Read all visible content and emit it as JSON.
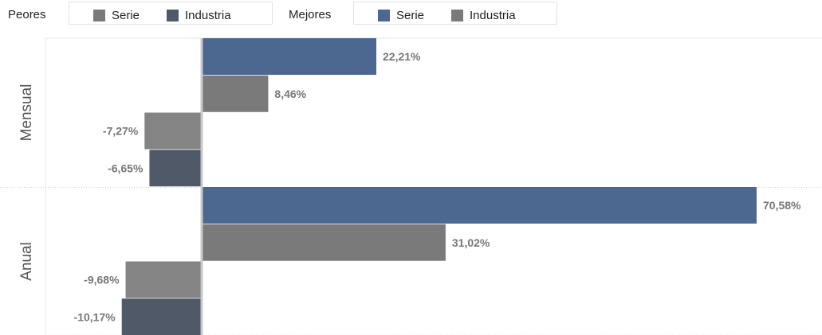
{
  "legend": {
    "worst_label": "Peores",
    "best_label": "Mejores",
    "worst_items": [
      {
        "label": "Serie",
        "color": "#7a7a7a"
      },
      {
        "label": "Industria",
        "color": "#4f5968"
      }
    ],
    "best_items": [
      {
        "label": "Serie",
        "color": "#4c6890"
      },
      {
        "label": "Industria",
        "color": "#7a7a7a"
      }
    ]
  },
  "chart_data": {
    "type": "bar",
    "orientation": "horizontal",
    "categories": [
      "Mensual",
      "Anual"
    ],
    "series": [
      {
        "name": "Mejores Serie",
        "values": [
          22.21,
          70.58
        ],
        "labels": [
          "22,21%",
          "70,58%"
        ],
        "color": "#4c6890"
      },
      {
        "name": "Mejores Industria",
        "values": [
          8.46,
          31.02
        ],
        "labels": [
          "8,46%",
          "31,02%"
        ],
        "color": "#7a7a7a"
      },
      {
        "name": "Peores Serie",
        "values": [
          -7.27,
          -9.68
        ],
        "labels": [
          "-7,27%",
          "-9,68%"
        ],
        "color": "#848484"
      },
      {
        "name": "Peores Industria",
        "values": [
          -6.65,
          -10.17
        ],
        "labels": [
          "-6,65%",
          "-10,17%"
        ],
        "color": "#4f5968"
      }
    ],
    "grid": false,
    "legend_position": "top"
  }
}
